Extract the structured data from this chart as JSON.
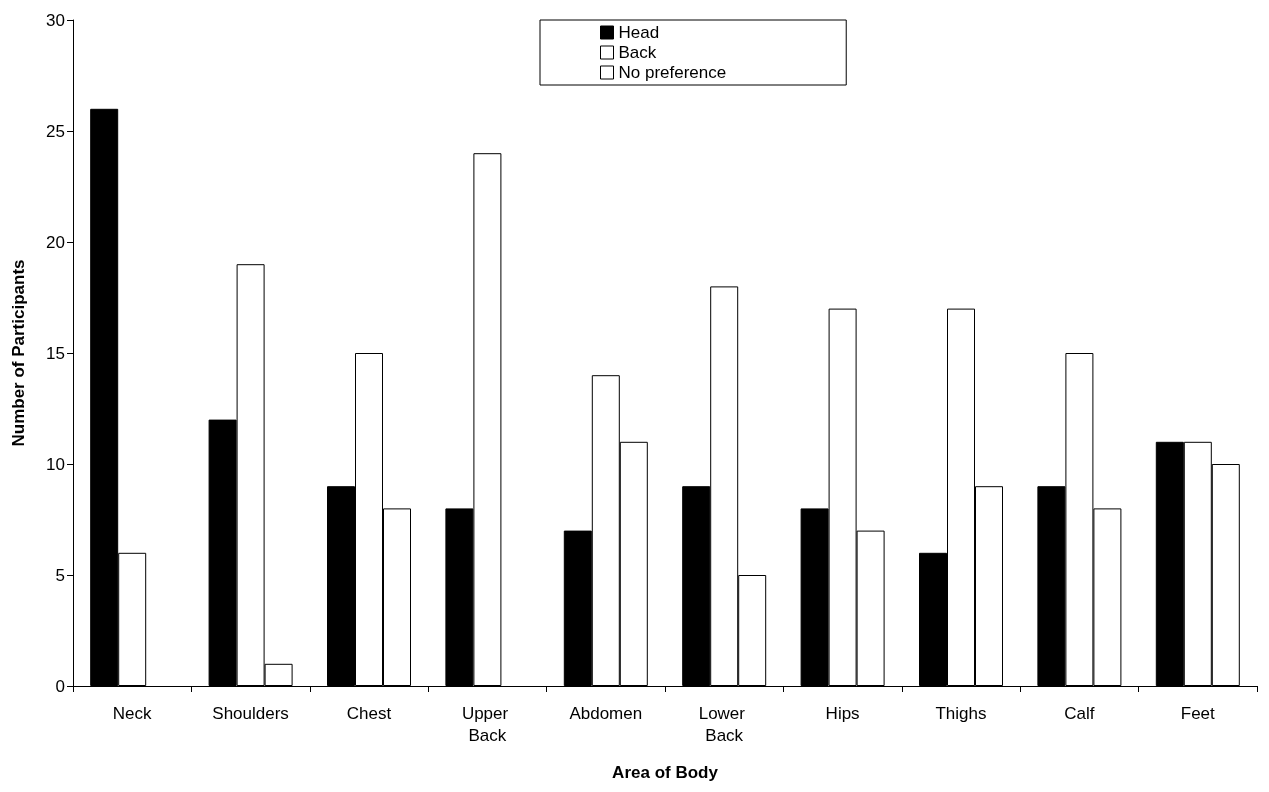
{
  "chart_data": {
    "type": "bar",
    "xlabel": "Area of Body",
    "ylabel": "Number of Participants",
    "categories": [
      "Neck",
      "Shoulders",
      "Chest",
      "Upper Back",
      "Abdomen",
      "Lower Back",
      "Hips",
      "Thighs",
      "Calf",
      "Feet"
    ],
    "series": [
      {
        "name": "Head",
        "color": "#000000",
        "values": [
          26,
          12,
          9,
          8,
          7,
          9,
          8,
          6,
          9,
          11
        ]
      },
      {
        "name": "Back",
        "color": "#ffffff",
        "values": [
          6,
          19,
          15,
          24,
          14,
          18,
          17,
          17,
          15,
          11
        ]
      },
      {
        "name": "No preference",
        "color": "#ffffff",
        "values": [
          null,
          1,
          8,
          null,
          11,
          5,
          7,
          9,
          8,
          10
        ]
      }
    ],
    "ylim": [
      0,
      30
    ],
    "yticks": [
      0,
      5,
      10,
      15,
      20,
      25,
      30
    ],
    "grid": false,
    "legend": "top"
  }
}
